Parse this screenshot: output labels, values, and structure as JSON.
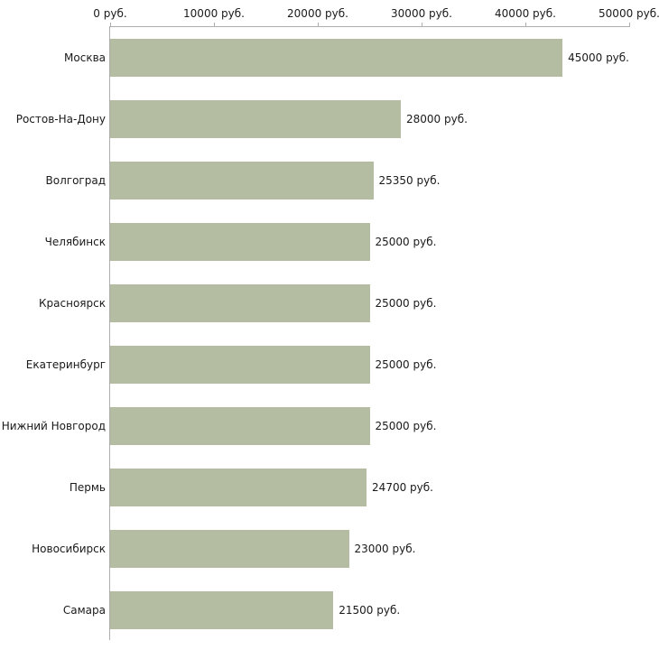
{
  "chart_data": {
    "type": "bar",
    "orientation": "horizontal",
    "title": "",
    "xlabel": "",
    "ylabel": "",
    "bar_color": "#b4bca2",
    "axis_color": "#adadad",
    "grid": false,
    "legend": false,
    "x_axis": {
      "position": "top",
      "min": 0,
      "max": 50000,
      "ticks": [
        0,
        10000,
        20000,
        30000,
        40000,
        50000
      ],
      "tick_labels": [
        "0 руб.",
        "10000 руб.",
        "20000 руб.",
        "30000 руб.",
        "40000 руб.",
        "50000 руб."
      ]
    },
    "categories": [
      "Москва",
      "Ростов-На-Дону",
      "Волгоград",
      "Челябинск",
      "Красноярск",
      "Екатеринбург",
      "Нижний Новгород",
      "Пермь",
      "Новосибирск",
      "Самара"
    ],
    "values": [
      45000,
      28000,
      25350,
      25000,
      25000,
      25000,
      25000,
      24700,
      23000,
      21500
    ],
    "value_labels": [
      "45000 руб.",
      "28000 руб.",
      "25350 руб.",
      "25000 руб.",
      "25000 руб.",
      "25000 руб.",
      "25000 руб.",
      "24700 руб.",
      "23000 руб.",
      "21500 руб."
    ]
  }
}
